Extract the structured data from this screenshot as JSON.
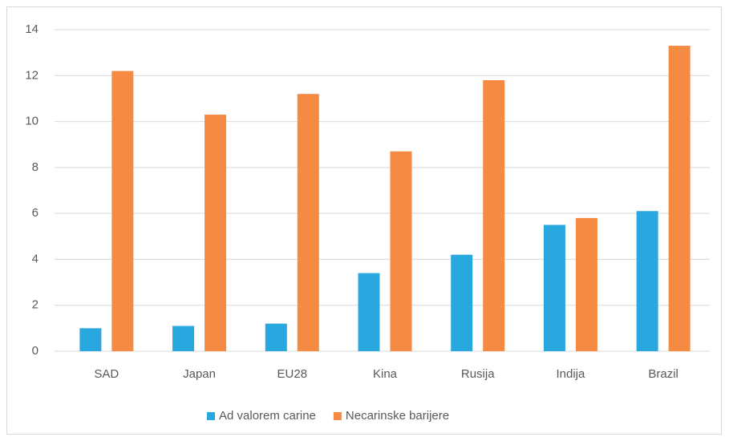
{
  "chart_data": {
    "type": "bar",
    "categories": [
      "SAD",
      "Japan",
      "EU28",
      "Kina",
      "Rusija",
      "Indija",
      "Brazil"
    ],
    "series": [
      {
        "name": "Ad valorem carine",
        "color": "#29a8e0",
        "values": [
          1.0,
          1.1,
          1.2,
          3.4,
          4.2,
          5.5,
          6.1
        ]
      },
      {
        "name": "Necarinske barijere",
        "color": "#f58a42",
        "values": [
          12.2,
          10.3,
          11.2,
          8.7,
          11.8,
          5.8,
          13.3
        ]
      }
    ],
    "ylim": [
      0,
      14
    ],
    "yticks": [
      0,
      2,
      4,
      6,
      8,
      10,
      12,
      14
    ],
    "grid": true,
    "legend": "bottom"
  }
}
